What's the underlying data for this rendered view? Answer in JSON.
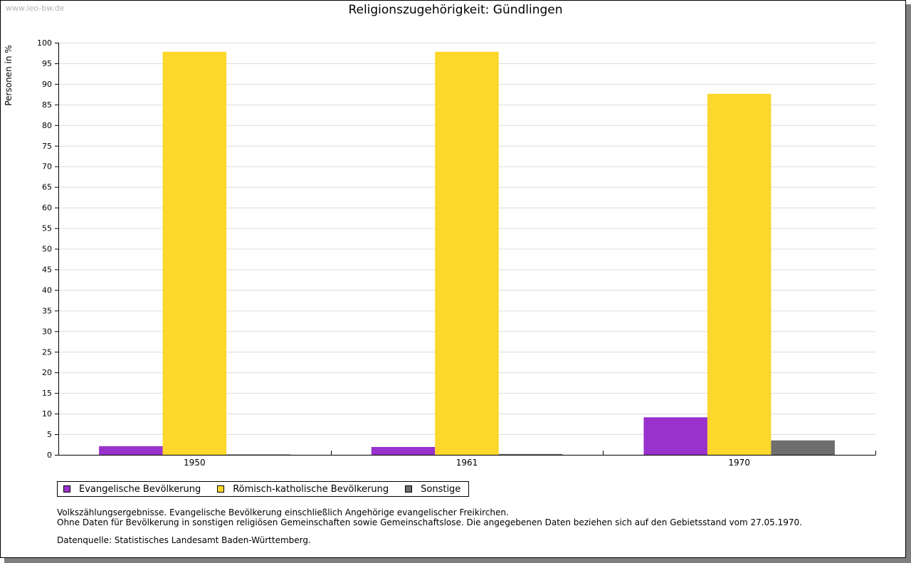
{
  "watermark": "www.leo-bw.de",
  "legend": [
    {
      "label": "Evangelische Bevölkerung",
      "color": "#9932cc"
    },
    {
      "label": "Römisch-katholische Bevölkerung",
      "color": "#fcd72c"
    },
    {
      "label": "Sonstige",
      "color": "#6e6e6e"
    }
  ],
  "notes": [
    "Volkszählungsergebnisse. Evangelische Bevölkerung einschließlich Angehörige evangelischer Freikirchen.",
    "Ohne Daten für Bevölkerung in sonstigen religiösen Gemeinschaften sowie Gemeinschaftslose. Die angegebenen Daten beziehen sich auf den Gebietsstand vom 27.05.1970."
  ],
  "source": "Datenquelle: Statistisches Landesamt Baden-Württemberg.",
  "chart_data": {
    "type": "bar",
    "title": "Religionszugehörigkeit: Gündlingen",
    "xlabel": "",
    "ylabel": "Personen in %",
    "categories": [
      "1950",
      "1961",
      "1970"
    ],
    "series": [
      {
        "name": "Evangelische Bevölkerung",
        "color": "#9932cc",
        "values": [
          2.1,
          1.9,
          9.1
        ]
      },
      {
        "name": "Römisch-katholische Bevölkerung",
        "color": "#fcd72c",
        "values": [
          97.8,
          97.8,
          87.6
        ]
      },
      {
        "name": "Sonstige",
        "color": "#6e6e6e",
        "values": [
          0.1,
          0.2,
          3.5
        ]
      }
    ],
    "ylim": [
      0,
      100
    ],
    "yticks": [
      0,
      5,
      10,
      15,
      20,
      25,
      30,
      35,
      40,
      45,
      50,
      55,
      60,
      65,
      70,
      75,
      80,
      85,
      90,
      95,
      100
    ],
    "grid": true,
    "legend_position": "bottom-left"
  }
}
